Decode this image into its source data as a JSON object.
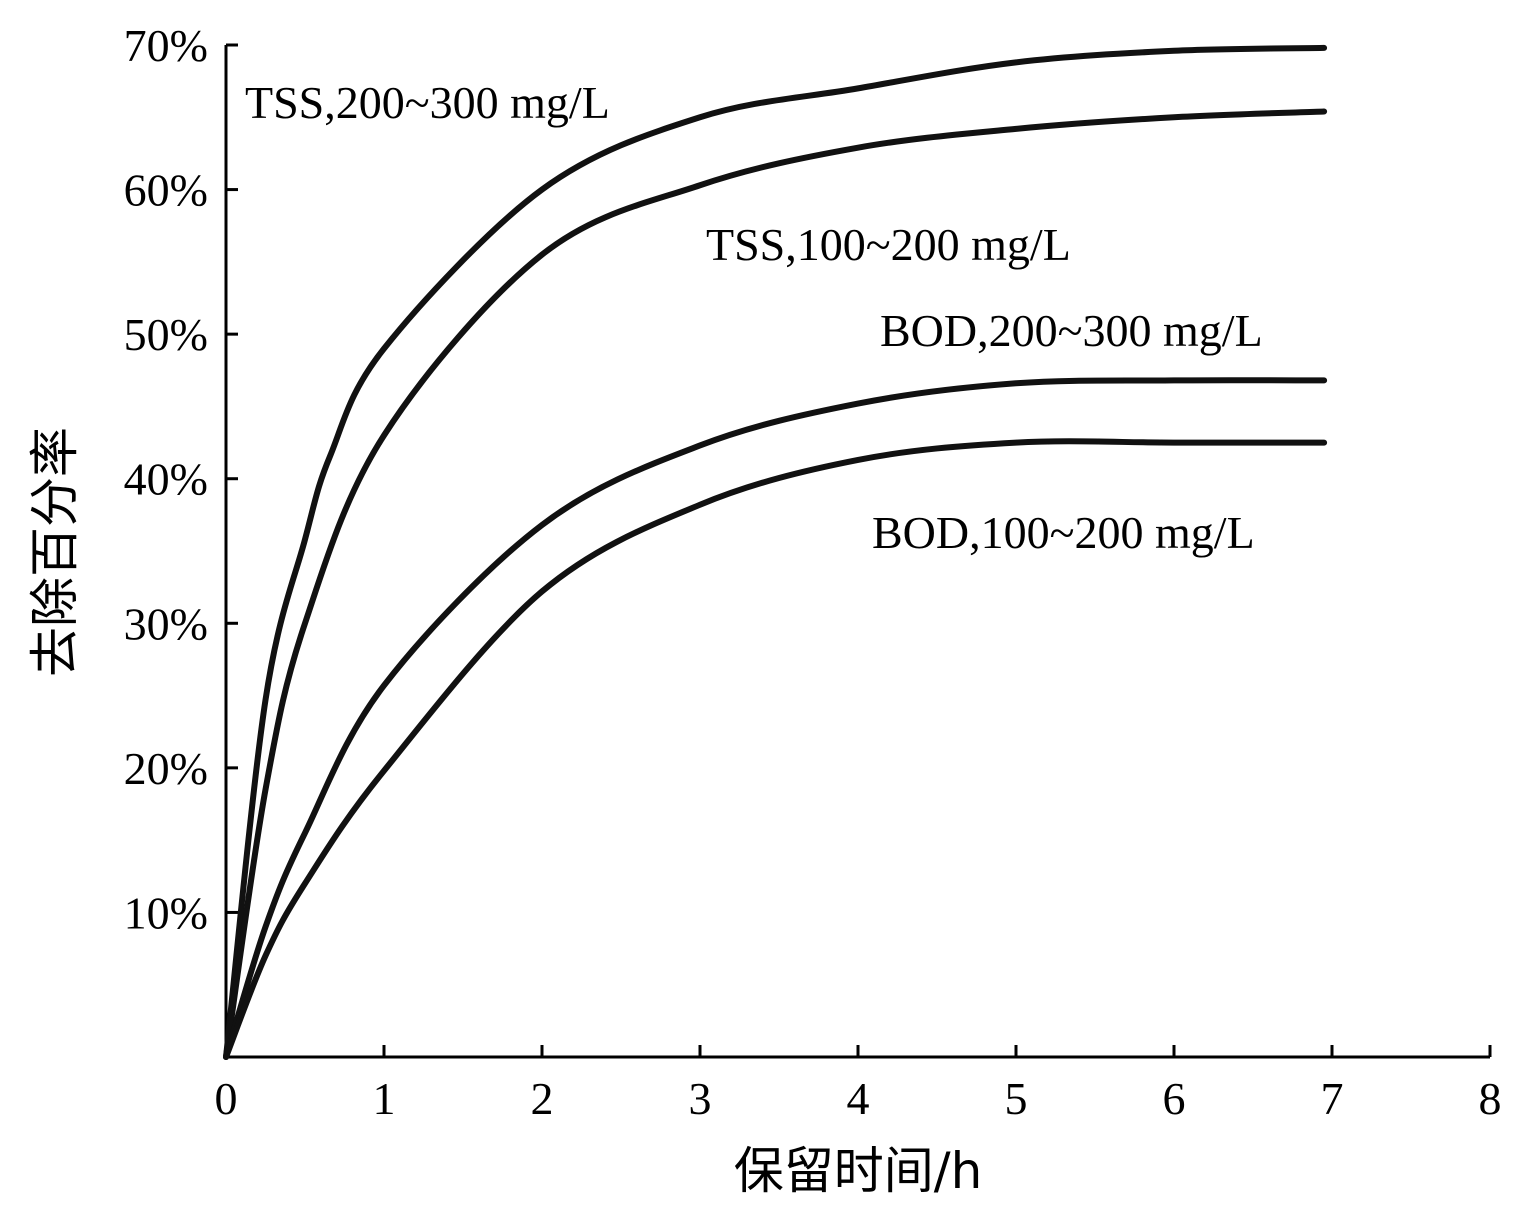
{
  "chart_data": {
    "type": "line",
    "title": "",
    "xlabel": "保留时间/h",
    "ylabel": "去除百分率",
    "xlim": [
      0,
      8
    ],
    "ylim": [
      0,
      70
    ],
    "x_ticks": [
      "0",
      "1",
      "2",
      "3",
      "4",
      "5",
      "6",
      "7",
      "8"
    ],
    "y_ticks": [
      "10%",
      "20%",
      "30%",
      "40%",
      "50%",
      "60%",
      "70%"
    ],
    "grid": false,
    "series": [
      {
        "name": "TSS,200~300 mg/L",
        "x": [
          0,
          0.25,
          0.5,
          0.66,
          1,
          2,
          3,
          4,
          5,
          6,
          6.95
        ],
        "y": [
          0,
          24.7,
          35.8,
          41.6,
          49,
          60,
          65,
          67,
          68.8,
          69.6,
          69.8
        ]
      },
      {
        "name": "TSS,100~200 mg/L",
        "x": [
          0,
          0.25,
          0.5,
          1,
          2,
          3,
          4,
          5,
          6,
          6.95
        ],
        "y": [
          0,
          18.5,
          30,
          43,
          55.5,
          60.3,
          62.9,
          64.2,
          65,
          65.4
        ]
      },
      {
        "name": "BOD,200~300 mg/L",
        "x": [
          0,
          0.25,
          0.5,
          1,
          2,
          3,
          4,
          5,
          6,
          6.95
        ],
        "y": [
          0,
          9,
          15.5,
          25.7,
          36.8,
          42.3,
          45.2,
          46.6,
          46.8,
          46.8
        ]
      },
      {
        "name": "BOD,100~200 mg/L",
        "x": [
          0,
          0.25,
          0.5,
          1,
          2,
          3,
          4,
          5,
          6,
          6.95
        ],
        "y": [
          0,
          7,
          12,
          19.8,
          32.2,
          38.2,
          41.3,
          42.5,
          42.5,
          42.5
        ]
      }
    ]
  }
}
